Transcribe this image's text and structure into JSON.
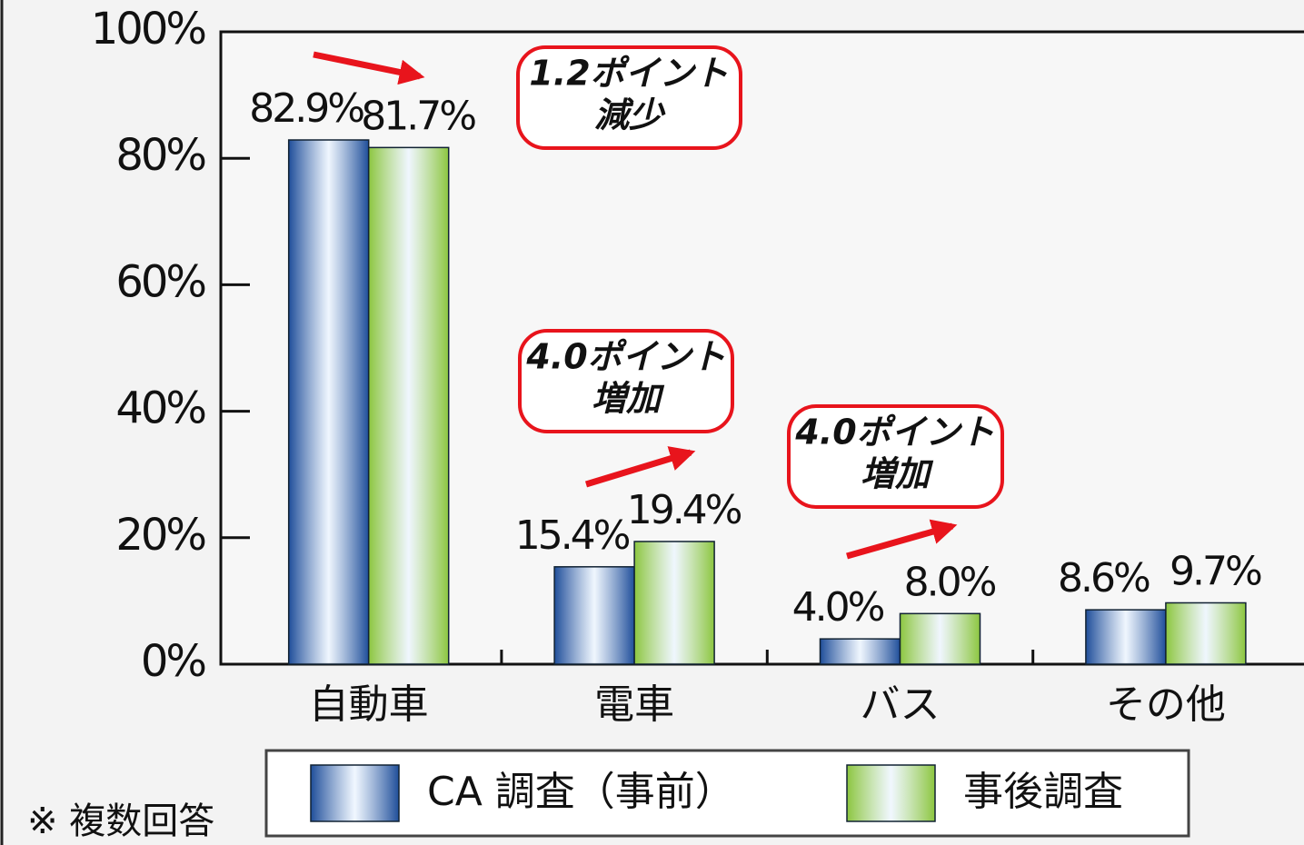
{
  "chart_data": {
    "type": "bar",
    "categories": [
      "自動車",
      "電車",
      "バス",
      "その他"
    ],
    "series": [
      {
        "name": "CA 調査（事前）",
        "color": "#1f4e9a",
        "values": [
          82.9,
          15.4,
          4.0,
          8.6
        ],
        "value_labels": [
          "82.9%",
          "15.4%",
          "4.0%",
          "8.6%"
        ]
      },
      {
        "name": "事後調査",
        "color": "#8cc63f",
        "values": [
          81.7,
          19.4,
          8.0,
          9.7
        ],
        "value_labels": [
          "81.7%",
          "19.4%",
          "8.0%",
          "9.7%"
        ]
      }
    ],
    "ylim": [
      0,
      100
    ],
    "yticks": [
      {
        "value": 0,
        "label": "0%"
      },
      {
        "value": 20,
        "label": "20%"
      },
      {
        "value": 40,
        "label": "40%"
      },
      {
        "value": 60,
        "label": "60%"
      },
      {
        "value": 80,
        "label": "80%"
      },
      {
        "value": 100,
        "label": "100%"
      }
    ],
    "annotations": [
      {
        "lines": [
          "1.2ポイント",
          "減少"
        ]
      },
      {
        "lines": [
          "4.0ポイント",
          "増加"
        ]
      },
      {
        "lines": [
          "4.0ポイント",
          "増加"
        ]
      }
    ],
    "footnote": "※ 複数回答"
  }
}
